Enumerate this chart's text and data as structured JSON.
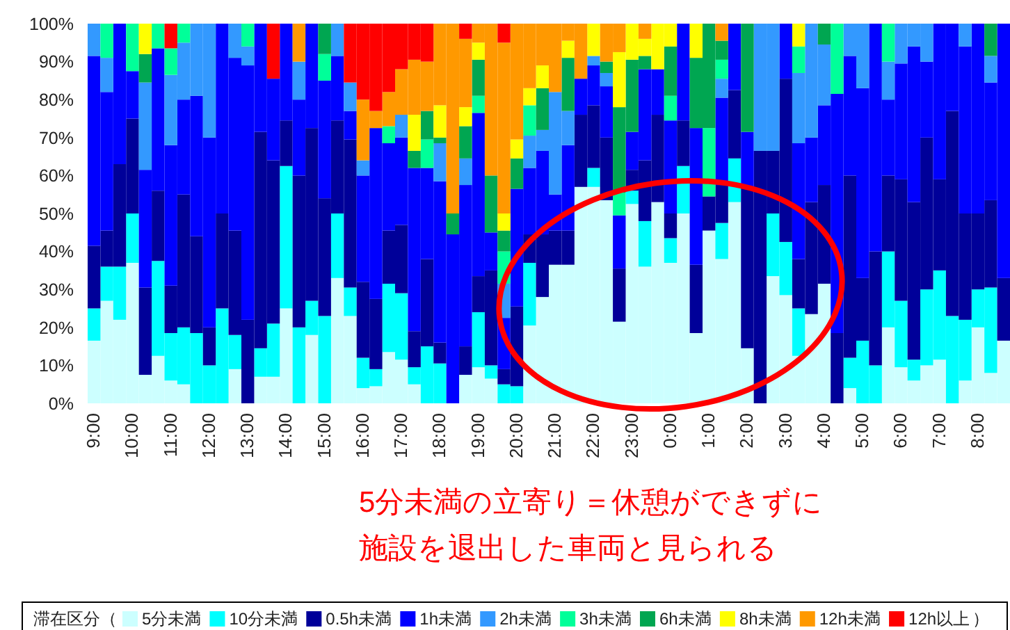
{
  "chart_data": {
    "type": "bar",
    "stacked": true,
    "legend": "bottom",
    "legend_title": "滞在区分（",
    "annotations": [
      "5分未満の立寄り＝休憩ができずに",
      "施設を退出した車両と見られる",
      "）"
    ],
    "ylim": [
      0,
      100
    ],
    "yticks": [
      {
        "value": 0,
        "label": "0%"
      },
      {
        "value": 10,
        "label": "10%"
      },
      {
        "value": 20,
        "label": "20%"
      },
      {
        "value": 30,
        "label": "30%"
      },
      {
        "value": 40,
        "label": "40%"
      },
      {
        "value": 50,
        "label": "50%"
      },
      {
        "value": 60,
        "label": "60%"
      },
      {
        "value": 70,
        "label": "70%"
      },
      {
        "value": 80,
        "label": "80%"
      },
      {
        "value": 90,
        "label": "90%"
      },
      {
        "value": 100,
        "label": "100%"
      }
    ],
    "categories": [
      "9:00",
      null,
      null,
      "10:00",
      null,
      null,
      "11:00",
      null,
      null,
      "12:00",
      null,
      null,
      "13:00",
      null,
      null,
      "14:00",
      null,
      null,
      "15:00",
      null,
      null,
      "16:00",
      null,
      null,
      "17:00",
      null,
      null,
      "18:00",
      null,
      null,
      "19:00",
      null,
      null,
      "20:00",
      null,
      null,
      "21:00",
      null,
      null,
      "22:00",
      null,
      null,
      "23:00",
      null,
      null,
      "0:00",
      null,
      null,
      "1:00",
      null,
      null,
      "2:00",
      null,
      null,
      "3:00",
      null,
      null,
      "4:00",
      null,
      null,
      "5:00",
      null,
      null,
      "6:00",
      null,
      null,
      "7:00",
      null,
      null,
      "8:00",
      null,
      null
    ],
    "series": [
      {
        "name": "5分未満",
        "color": "#ccffff",
        "values": [
          16.5,
          27,
          22,
          37,
          7.5,
          12.5,
          6,
          5,
          0,
          0,
          0,
          9,
          0,
          7,
          7,
          25,
          0,
          18,
          0,
          33,
          23,
          4,
          4.5,
          13.5,
          11.5,
          5,
          0,
          0,
          0,
          7.5,
          9.5,
          6.5,
          0,
          0,
          20.5,
          28,
          36.5,
          36.5,
          57,
          57,
          53.5,
          21.5,
          52.5,
          36,
          53,
          37,
          50,
          18.5,
          45.5,
          38,
          53,
          14.5,
          0,
          33.5,
          28.5,
          12.5,
          23.5,
          31.5,
          0,
          4,
          0,
          0,
          20,
          9.5,
          6,
          10,
          11.5,
          0,
          6,
          20,
          8,
          16.5
        ]
      },
      {
        "name": "10分未満",
        "color": "#00ffff",
        "values": [
          8.5,
          9,
          14,
          13,
          0,
          25,
          12.5,
          15,
          18.5,
          10,
          25,
          9,
          0,
          7.5,
          14,
          37.5,
          20,
          9,
          23,
          17,
          7.5,
          8,
          4.5,
          18,
          17.5,
          4.5,
          15,
          10.5,
          0,
          0,
          14.5,
          3.5,
          5,
          4.5,
          16.5,
          0,
          0,
          0,
          0,
          5,
          0,
          0,
          3.5,
          12,
          0,
          6.5,
          12.5,
          0,
          0,
          9.5,
          11.5,
          0,
          0,
          16.5,
          14,
          12.5,
          0,
          0,
          0,
          8,
          16.5,
          10,
          20,
          17.5,
          5.5,
          20,
          23.5,
          23,
          16,
          10,
          22.5,
          0
        ]
      },
      {
        "name": "0.5h未満",
        "color": "#000099",
        "values": [
          16.5,
          9.5,
          27,
          25,
          23,
          18.5,
          12.5,
          35,
          25.5,
          10,
          25,
          27.5,
          22,
          57,
          43,
          12,
          40,
          45.5,
          31,
          24.5,
          39,
          20,
          18.5,
          14,
          18,
          9.5,
          23,
          5.5,
          0,
          7.5,
          9.5,
          25,
          4,
          21,
          7.5,
          16.5,
          9,
          9,
          19,
          16.5,
          16.5,
          14,
          5.5,
          16,
          23,
          6.5,
          12,
          18,
          9,
          10,
          18,
          42.5,
          66.5,
          16.5,
          43,
          13,
          29.5,
          26,
          18.5,
          48,
          16.5,
          30,
          20,
          32,
          41.5,
          40,
          24,
          54,
          28,
          20,
          23,
          16.5
        ]
      },
      {
        "name": "1h未満",
        "color": "#0000ff",
        "values": [
          50,
          36.5,
          37,
          12.5,
          31,
          37.5,
          37,
          25,
          37,
          50,
          50,
          45.5,
          67,
          28.5,
          21.5,
          25.5,
          20,
          27.5,
          31,
          17,
          7.5,
          28,
          45,
          23,
          23,
          43,
          24,
          42.5,
          44.5,
          42.5,
          43,
          10,
          13.5,
          31,
          17.5,
          22,
          9.5,
          22.5,
          9.5,
          10.5,
          13.5,
          14,
          10,
          24,
          12,
          24.5,
          25.5,
          36,
          0,
          23,
          17.5,
          14.5,
          0,
          0,
          14.5,
          30.5,
          17,
          21,
          63,
          31.5,
          50,
          60,
          20,
          30.5,
          41,
          20,
          41,
          23,
          44,
          50,
          31,
          67
        ]
      },
      {
        "name": "2h未満",
        "color": "#3399ff",
        "values": [
          8.5,
          9,
          0,
          0,
          23,
          0,
          18.5,
          15,
          19,
          30,
          0,
          9,
          5,
          0,
          0,
          0,
          10,
          0,
          0,
          8.5,
          7.5,
          4,
          0,
          0,
          6,
          0,
          0,
          10,
          0,
          7,
          0,
          0,
          9,
          0,
          8.5,
          5.5,
          27,
          9,
          0,
          2.5,
          3.5,
          0,
          0,
          0,
          0,
          0,
          0,
          0,
          0,
          5,
          0,
          0,
          33.5,
          33.5,
          0,
          18.5,
          30,
          16,
          0,
          8.5,
          17,
          0,
          10,
          10.5,
          6,
          10,
          0,
          0,
          6,
          0,
          7,
          0
        ]
      },
      {
        "name": "3h未満",
        "color": "#00ff99",
        "values": [
          0,
          9,
          0,
          12.5,
          0,
          6.5,
          7,
          5,
          0,
          0,
          0,
          0,
          6,
          0,
          0,
          0,
          0,
          0,
          7,
          0,
          0,
          0,
          0,
          4.5,
          0,
          0,
          7.5,
          0,
          0,
          0,
          4.5,
          0,
          8.5,
          0,
          8,
          0,
          0,
          0,
          0,
          0,
          0,
          6,
          0,
          0,
          0,
          6.5,
          0,
          0,
          18,
          5,
          0,
          0,
          0,
          0,
          0,
          7,
          0,
          0,
          18.5,
          0,
          0,
          0,
          10,
          0,
          0,
          0,
          0,
          0,
          0,
          0,
          0,
          0
        ]
      },
      {
        "name": "6h未満",
        "color": "#00a651",
        "values": [
          0,
          0,
          0,
          0,
          7.5,
          0,
          0,
          0,
          0,
          0,
          0,
          0,
          0,
          0,
          0,
          0,
          0,
          0,
          8,
          0,
          0,
          0,
          0,
          0,
          0,
          4.5,
          7.5,
          1.5,
          5.5,
          8.5,
          9.5,
          15,
          5.5,
          8,
          0,
          11,
          0,
          14,
          0,
          0,
          3,
          22.5,
          19,
          3.5,
          0,
          13,
          0,
          18.5,
          27.5,
          5,
          0,
          28.5,
          0,
          0,
          0,
          0,
          0,
          5.5,
          0,
          0,
          0,
          0,
          0,
          0,
          0,
          0,
          0,
          0,
          0,
          0,
          8.5,
          0
        ]
      },
      {
        "name": "8h未満",
        "color": "#ffff00",
        "values": [
          0,
          0,
          0,
          0,
          8,
          0,
          0,
          0,
          0,
          0,
          0,
          0,
          0,
          0,
          0,
          0,
          0,
          0,
          0,
          0,
          0,
          0,
          0,
          0,
          0,
          9.5,
          0,
          8.5,
          0,
          5,
          4.5,
          0,
          4.5,
          5,
          4.5,
          6,
          0,
          4.5,
          0,
          8.5,
          0,
          14.5,
          9.5,
          4.5,
          12,
          6,
          0,
          9,
          0,
          0,
          0,
          0,
          0,
          0,
          0,
          6,
          0,
          0,
          0,
          0,
          0,
          0,
          0,
          0,
          0,
          0,
          0,
          0,
          0,
          0,
          0,
          0
        ]
      },
      {
        "name": "12h未満",
        "color": "#ff9900",
        "values": [
          0,
          0,
          0,
          0,
          0,
          0,
          0,
          0,
          0,
          0,
          0,
          0,
          0,
          0,
          0,
          0,
          10,
          0,
          0,
          0,
          0,
          16,
          4.5,
          9,
          12,
          14.5,
          13,
          21.5,
          50,
          18,
          5,
          40,
          45,
          30.5,
          17,
          11,
          18,
          4.5,
          14.5,
          0,
          10,
          7.5,
          0,
          4,
          0,
          0,
          0,
          0,
          0,
          4.5,
          0,
          0,
          0,
          0,
          0,
          0,
          0,
          0,
          0,
          0,
          0,
          0,
          0,
          0,
          0,
          0,
          0,
          0,
          0,
          0,
          0,
          0
        ]
      },
      {
        "name": "12h以上",
        "color": "#ff0000",
        "values": [
          0,
          0,
          0,
          0,
          0,
          0,
          6.5,
          0,
          0,
          0,
          0,
          0,
          0,
          0,
          14.5,
          0,
          0,
          0,
          0,
          0,
          15.5,
          20,
          23,
          18,
          12,
          9.5,
          10,
          0,
          0,
          4,
          0,
          0,
          5,
          0,
          0,
          0,
          0,
          0,
          0,
          0,
          0,
          0,
          0,
          0,
          0,
          0,
          0,
          0,
          0,
          0,
          0,
          0,
          0,
          0,
          0,
          0,
          0,
          0,
          0,
          0,
          0,
          0,
          0,
          0,
          0,
          0,
          0,
          0,
          0,
          0,
          0,
          0
        ]
      }
    ]
  }
}
